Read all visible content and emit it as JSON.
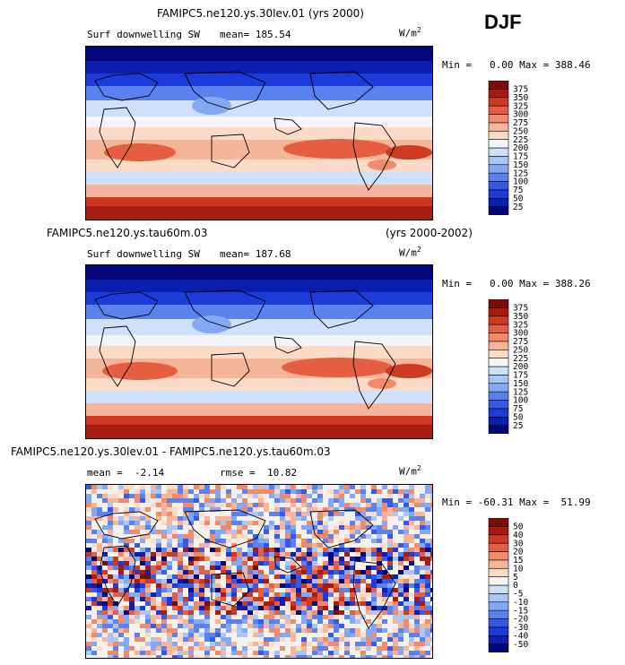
{
  "figure": {
    "season": "DJF",
    "units_base": "W/m",
    "units_exp": "2"
  },
  "chart_data": [
    {
      "type": "heatmap",
      "title": "FAMIPC5.ne120.ys.30lev.01 (yrs 2000)",
      "variable": "Surf downwelling SW",
      "mean_label": "mean= 185.54",
      "min_max_label": "Min =   0.00 Max = 388.46",
      "min": 0.0,
      "max": 388.46,
      "levels": [
        25,
        50,
        75,
        100,
        125,
        150,
        175,
        200,
        225,
        250,
        275,
        300,
        325,
        350,
        375
      ],
      "colors": [
        "#040779",
        "#0b1faf",
        "#1d3bd8",
        "#3559e8",
        "#5a82ef",
        "#85a8f4",
        "#aac6f8",
        "#cfe0fa",
        "#f2f5fb",
        "#fadbc8",
        "#f6b59a",
        "#f08a6b",
        "#e55e41",
        "#cc3a22",
        "#a81c10",
        "#7d0b05"
      ]
    },
    {
      "type": "heatmap",
      "title": "FAMIPC5.ne120.ys.tau60m.03",
      "years": "(yrs 2000-2002)",
      "variable": "Surf downwelling SW",
      "mean_label": "mean= 187.68",
      "min_max_label": "Min =   0.00 Max = 388.26",
      "min": 0.0,
      "max": 388.26,
      "levels": [
        25,
        50,
        75,
        100,
        125,
        150,
        175,
        200,
        225,
        250,
        275,
        300,
        325,
        350,
        375
      ],
      "colors": [
        "#040779",
        "#0b1faf",
        "#1d3bd8",
        "#3559e8",
        "#5a82ef",
        "#85a8f4",
        "#aac6f8",
        "#cfe0fa",
        "#f2f5fb",
        "#fadbc8",
        "#f6b59a",
        "#f08a6b",
        "#e55e41",
        "#cc3a22",
        "#a81c10",
        "#7d0b05"
      ]
    },
    {
      "type": "heatmap",
      "title": "FAMIPC5.ne120.ys.30lev.01 - FAMIPC5.ne120.ys.tau60m.03",
      "mean_label": "mean =  -2.14",
      "rmse_label": "rmse =  10.82",
      "min_max_label": "Min = -60.31 Max =  51.99",
      "min": -60.31,
      "max": 51.99,
      "levels": [
        -50,
        -40,
        -30,
        -20,
        -15,
        -10,
        -5,
        0,
        5,
        10,
        15,
        20,
        30,
        40,
        50
      ],
      "colors": [
        "#040779",
        "#0b1faf",
        "#1d3bd8",
        "#3559e8",
        "#5a82ef",
        "#85a8f4",
        "#aac6f8",
        "#cfe0fa",
        "#f7f3ee",
        "#fadbc8",
        "#f6b59a",
        "#f08a6b",
        "#e55e41",
        "#cc3a22",
        "#a81c10",
        "#7d0b05"
      ]
    }
  ]
}
